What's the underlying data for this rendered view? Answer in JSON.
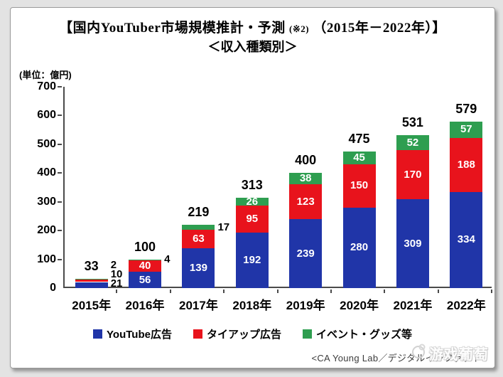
{
  "title": {
    "line1_pre": "【国内YouTuber市場規模推計・予測",
    "line1_note": "(※2)",
    "line1_post": "（2015年－2022年）】",
    "line2": "＜収入種類別＞"
  },
  "unit_label": "(単位：億円)",
  "chart_data": {
    "type": "bar",
    "stacked": true,
    "title": "国内YouTuber市場規模推計・予測（2015年−2022年）収入種類別",
    "ylabel": "億円",
    "categories": [
      "2015年",
      "2016年",
      "2017年",
      "2018年",
      "2019年",
      "2020年",
      "2021年",
      "2022年"
    ],
    "series": [
      {
        "name": "YouTube広告",
        "color": "#2035a8",
        "values": [
          21,
          56,
          139,
          192,
          239,
          280,
          309,
          334
        ]
      },
      {
        "name": "タイアップ広告",
        "color": "#e8131c",
        "values": [
          10,
          40,
          63,
          95,
          123,
          150,
          170,
          188
        ]
      },
      {
        "name": "イベント・グッズ等",
        "color": "#2e9e50",
        "values": [
          2,
          4,
          17,
          26,
          38,
          45,
          52,
          57
        ]
      }
    ],
    "totals": [
      33,
      100,
      219,
      313,
      400,
      475,
      531,
      579
    ],
    "ylim": [
      0,
      700
    ],
    "yticks": [
      0,
      100,
      200,
      300,
      400,
      500,
      600,
      700
    ],
    "grid": false,
    "legend_position": "bottom"
  },
  "footer": {
    "source": "<CA Young Lab／デジタルインファクト",
    "watermark": "游戏葡萄"
  }
}
